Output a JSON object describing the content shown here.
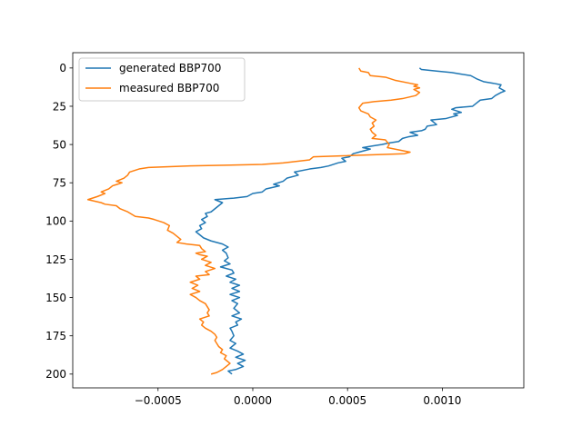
{
  "chart_data": {
    "type": "line",
    "title": "",
    "xlabel": "",
    "ylabel": "",
    "xlim": [
      -0.00095,
      0.00143
    ],
    "ylim": [
      209,
      -10
    ],
    "y_inverted": true,
    "grid": false,
    "legend_position": "top-left",
    "x_ticks": [
      {
        "value": -0.0005,
        "label": "−0.0005"
      },
      {
        "value": 0.0,
        "label": "0.0000"
      },
      {
        "value": 0.0005,
        "label": "0.0005"
      },
      {
        "value": 0.001,
        "label": "0.0010"
      }
    ],
    "y_ticks": [
      {
        "value": 0,
        "label": "0"
      },
      {
        "value": 25,
        "label": "25"
      },
      {
        "value": 50,
        "label": "50"
      },
      {
        "value": 75,
        "label": "75"
      },
      {
        "value": 100,
        "label": "100"
      },
      {
        "value": 125,
        "label": "125"
      },
      {
        "value": 150,
        "label": "150"
      },
      {
        "value": 175,
        "label": "175"
      },
      {
        "value": 200,
        "label": "200"
      }
    ],
    "series": [
      {
        "name": "generated BBP700",
        "color": "#1f77b4",
        "points": [
          [
            0.00088,
            0
          ],
          [
            0.00089,
            1
          ],
          [
            0.00097,
            2
          ],
          [
            0.00105,
            3
          ],
          [
            0.0011,
            4
          ],
          [
            0.00115,
            5
          ],
          [
            0.00118,
            7
          ],
          [
            0.00122,
            9
          ],
          [
            0.00127,
            10
          ],
          [
            0.00131,
            11
          ],
          [
            0.0013,
            13
          ],
          [
            0.00133,
            15
          ],
          [
            0.00131,
            16
          ],
          [
            0.00128,
            18
          ],
          [
            0.00126,
            20
          ],
          [
            0.0012,
            21
          ],
          [
            0.00118,
            23
          ],
          [
            0.00116,
            25
          ],
          [
            0.00107,
            26
          ],
          [
            0.00105,
            27
          ],
          [
            0.0011,
            29
          ],
          [
            0.00106,
            30
          ],
          [
            0.00108,
            31
          ],
          [
            0.00102,
            33
          ],
          [
            0.00094,
            34
          ],
          [
            0.00097,
            37
          ],
          [
            0.00092,
            38
          ],
          [
            0.00091,
            40
          ],
          [
            0.00089,
            41
          ],
          [
            0.00083,
            42
          ],
          [
            0.00087,
            44
          ],
          [
            0.00082,
            45
          ],
          [
            0.00079,
            46
          ],
          [
            0.00077,
            48
          ],
          [
            0.00072,
            49
          ],
          [
            0.00068,
            50
          ],
          [
            0.00063,
            51
          ],
          [
            0.00058,
            52
          ],
          [
            0.00062,
            53
          ],
          [
            0.00056,
            55
          ],
          [
            0.00053,
            56
          ],
          [
            0.00052,
            57
          ],
          [
            0.00051,
            58
          ],
          [
            0.00047,
            59
          ],
          [
            0.00049,
            61
          ],
          [
            0.00045,
            62
          ],
          [
            0.0004,
            64
          ],
          [
            0.00036,
            65
          ],
          [
            0.0003,
            66
          ],
          [
            0.00022,
            68
          ],
          [
            0.00024,
            70
          ],
          [
            0.00018,
            72
          ],
          [
            0.00016,
            74
          ],
          [
            0.00011,
            76
          ],
          [
            0.00014,
            77
          ],
          [
            7e-05,
            79
          ],
          [
            5e-05,
            81
          ],
          [
            0.0,
            82
          ],
          [
            -3e-05,
            84
          ],
          [
            -0.0001,
            85
          ],
          [
            -0.0002,
            86
          ],
          [
            -0.00016,
            88
          ],
          [
            -0.00018,
            90
          ],
          [
            -0.0002,
            92
          ],
          [
            -0.00022,
            94
          ],
          [
            -0.00025,
            95
          ],
          [
            -0.00024,
            97
          ],
          [
            -0.00027,
            99
          ],
          [
            -0.00025,
            101
          ],
          [
            -0.00028,
            103
          ],
          [
            -0.00027,
            105
          ],
          [
            -0.0003,
            107
          ],
          [
            -0.00028,
            109
          ],
          [
            -0.00026,
            111
          ],
          [
            -0.00022,
            113
          ],
          [
            -0.00016,
            115
          ],
          [
            -0.00013,
            117
          ],
          [
            -0.00016,
            119
          ],
          [
            -0.00014,
            121
          ],
          [
            -0.00013,
            124
          ],
          [
            -0.00015,
            126
          ],
          [
            -0.00012,
            128
          ],
          [
            -0.00017,
            130
          ],
          [
            -0.00011,
            132
          ],
          [
            -0.0001,
            134
          ],
          [
            -0.00014,
            136
          ],
          [
            -9e-05,
            138
          ],
          [
            -0.00012,
            140
          ],
          [
            -7e-05,
            142
          ],
          [
            -0.00011,
            144
          ],
          [
            -7e-05,
            146
          ],
          [
            -0.00012,
            148
          ],
          [
            -7e-05,
            150
          ],
          [
            -0.00011,
            152
          ],
          [
            -8e-05,
            154
          ],
          [
            -0.0001,
            157
          ],
          [
            -7e-05,
            160
          ],
          [
            -0.00011,
            162
          ],
          [
            -6e-05,
            164
          ],
          [
            -9e-05,
            166
          ],
          [
            -8e-05,
            168
          ],
          [
            -0.00012,
            170
          ],
          [
            -0.00011,
            172
          ],
          [
            -0.0001,
            175
          ],
          [
            -0.00012,
            178
          ],
          [
            -9e-05,
            180
          ],
          [
            -0.00012,
            183
          ],
          [
            -8e-05,
            185
          ],
          [
            -5e-05,
            187
          ],
          [
            -9e-05,
            189
          ],
          [
            -4e-05,
            191
          ],
          [
            -8e-05,
            193
          ],
          [
            -5e-05,
            195
          ],
          [
            -9e-05,
            197
          ],
          [
            -0.00013,
            198
          ],
          [
            -0.00011,
            200
          ]
        ]
      },
      {
        "name": "measured BBP700",
        "color": "#ff7f0e",
        "points": [
          [
            0.00056,
            0
          ],
          [
            0.00057,
            2
          ],
          [
            0.00061,
            3
          ],
          [
            0.00062,
            5
          ],
          [
            0.0007,
            6
          ],
          [
            0.00075,
            8
          ],
          [
            0.00083,
            10
          ],
          [
            0.00087,
            11
          ],
          [
            0.00085,
            12
          ],
          [
            0.00088,
            13
          ],
          [
            0.00085,
            14
          ],
          [
            0.00088,
            16
          ],
          [
            0.00086,
            18
          ],
          [
            0.00079,
            20
          ],
          [
            0.00073,
            21
          ],
          [
            0.00064,
            22
          ],
          [
            0.00058,
            23
          ],
          [
            0.00056,
            26
          ],
          [
            0.00057,
            28
          ],
          [
            0.00061,
            30
          ],
          [
            0.00062,
            32
          ],
          [
            0.00065,
            34
          ],
          [
            0.00063,
            36
          ],
          [
            0.00064,
            38
          ],
          [
            0.00062,
            40
          ],
          [
            0.00063,
            42
          ],
          [
            0.00065,
            44
          ],
          [
            0.00063,
            46
          ],
          [
            0.0007,
            47
          ],
          [
            0.00072,
            50
          ],
          [
            0.00071,
            52
          ],
          [
            0.00083,
            55
          ],
          [
            0.0008,
            56
          ],
          [
            0.00032,
            58
          ],
          [
            0.0003,
            60
          ],
          [
            0.00016,
            62
          ],
          [
            5e-05,
            63
          ],
          [
            -0.00033,
            64
          ],
          [
            -0.00055,
            65
          ],
          [
            -0.0006,
            66
          ],
          [
            -0.00065,
            68
          ],
          [
            -0.00066,
            70
          ],
          [
            -0.00068,
            72
          ],
          [
            -0.00072,
            74
          ],
          [
            -0.00069,
            75
          ],
          [
            -0.00074,
            77
          ],
          [
            -0.00076,
            79
          ],
          [
            -0.0008,
            81
          ],
          [
            -0.00078,
            82
          ],
          [
            -0.00082,
            84
          ],
          [
            -0.00087,
            86
          ],
          [
            -0.0008,
            88
          ],
          [
            -0.00078,
            89
          ],
          [
            -0.00072,
            90
          ],
          [
            -0.0007,
            92
          ],
          [
            -0.00066,
            94
          ],
          [
            -0.00062,
            97
          ],
          [
            -0.00055,
            98
          ],
          [
            -0.00052,
            99
          ],
          [
            -0.00047,
            101
          ],
          [
            -0.00044,
            103
          ],
          [
            -0.00045,
            106
          ],
          [
            -0.00042,
            108
          ],
          [
            -0.0004,
            110
          ],
          [
            -0.00038,
            112
          ],
          [
            -0.0004,
            114
          ],
          [
            -0.00035,
            115
          ],
          [
            -0.00028,
            116
          ],
          [
            -0.00027,
            118
          ],
          [
            -0.00025,
            120
          ],
          [
            -0.0003,
            121
          ],
          [
            -0.00028,
            122
          ],
          [
            -0.00024,
            123
          ],
          [
            -0.00027,
            125
          ],
          [
            -0.00022,
            127
          ],
          [
            -0.00025,
            129
          ],
          [
            -0.0002,
            131
          ],
          [
            -0.00025,
            133
          ],
          [
            -0.00023,
            135
          ],
          [
            -0.0003,
            136
          ],
          [
            -0.00028,
            138
          ],
          [
            -0.00033,
            140
          ],
          [
            -0.00029,
            142
          ],
          [
            -0.00032,
            144
          ],
          [
            -0.00028,
            146
          ],
          [
            -0.00033,
            148
          ],
          [
            -0.0003,
            150
          ],
          [
            -0.00028,
            152
          ],
          [
            -0.00025,
            154
          ],
          [
            -0.00024,
            156
          ],
          [
            -0.00023,
            158
          ],
          [
            -0.00024,
            160
          ],
          [
            -0.00023,
            162
          ],
          [
            -0.00028,
            164
          ],
          [
            -0.00026,
            166
          ],
          [
            -0.00027,
            168
          ],
          [
            -0.00025,
            170
          ],
          [
            -0.00022,
            172
          ],
          [
            -0.0002,
            174
          ],
          [
            -0.00019,
            176
          ],
          [
            -0.0002,
            178
          ],
          [
            -0.00019,
            180
          ],
          [
            -0.00018,
            182
          ],
          [
            -0.00016,
            184
          ],
          [
            -0.00017,
            186
          ],
          [
            -0.00014,
            188
          ],
          [
            -0.00015,
            190
          ],
          [
            -0.00012,
            193
          ],
          [
            -0.00014,
            195
          ],
          [
            -0.00016,
            197
          ],
          [
            -0.00019,
            199
          ],
          [
            -0.00022,
            200
          ]
        ]
      }
    ]
  }
}
